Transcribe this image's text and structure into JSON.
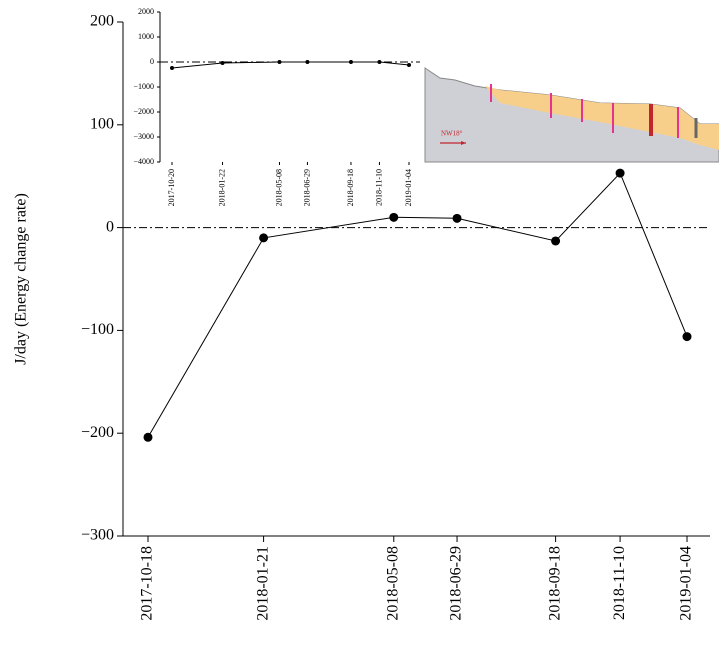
{
  "chart_data": [
    {
      "type": "line",
      "ylabel": "J/day (Energy change rate)",
      "x": [
        "2017-10-18",
        "2018-01-21",
        "2018-05-08",
        "2018-06-29",
        "2018-09-18",
        "2018-11-10",
        "2019-01-04"
      ],
      "values": [
        -204,
        -10,
        10,
        9,
        -13,
        53,
        -106
      ],
      "color": "#000000",
      "ylim": [
        -300,
        200
      ],
      "yticks": [
        {
          "value": -300,
          "label": "−300"
        },
        {
          "value": -200,
          "label": "−200"
        },
        {
          "value": -100,
          "label": "−100"
        },
        0,
        100,
        200
      ],
      "hline": 0
    },
    {
      "type": "line",
      "x": [
        "2017-10-20",
        "2018-01-22",
        "2018-05-08",
        "2018-06-29",
        "2018-09-18",
        "2018-11-10",
        "2019-01-04"
      ],
      "values": [
        -240,
        -40,
        0,
        0,
        0,
        0,
        -120
      ],
      "color": "#000000",
      "ylim": [
        -4000,
        2000
      ],
      "yticks": [
        {
          "value": -4000,
          "label": "−4000"
        },
        {
          "value": -3000,
          "label": "−3000"
        },
        {
          "value": -2000,
          "label": "−2000"
        },
        {
          "value": -1000,
          "label": "−1000"
        },
        0,
        1000,
        2000
      ],
      "hline": 0,
      "annotation": "NW18°"
    }
  ]
}
